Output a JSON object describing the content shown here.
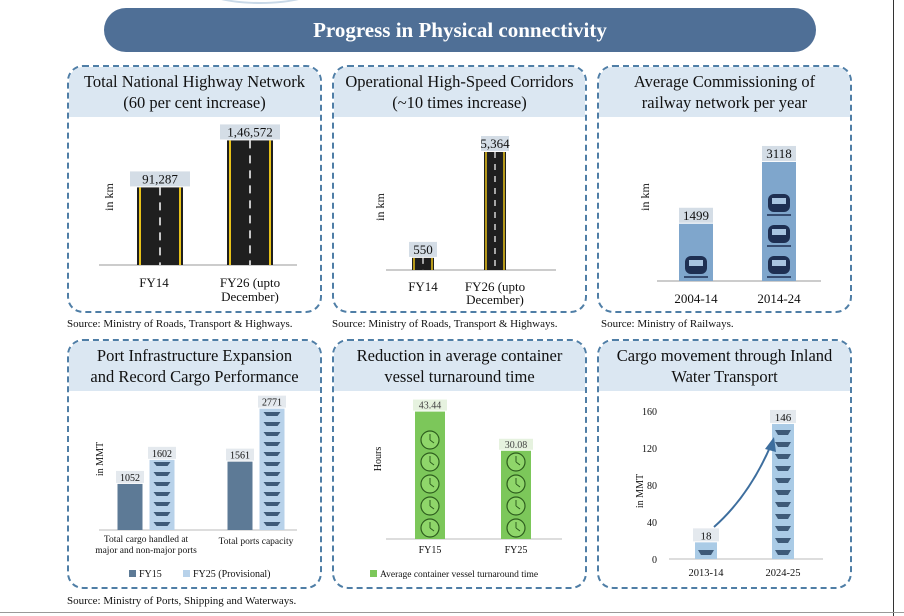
{
  "banner": {
    "title": "Progress in Physical connectivity"
  },
  "panels": [
    {
      "title": "Total National Highway Network\n(60 per cent increase)",
      "source": "Source: Ministry of Roads, Transport & Highways."
    },
    {
      "title": "Operational High-Speed Corridors\n(~10 times increase)",
      "source": "Source: Ministry of Roads, Transport & Highways."
    },
    {
      "title": "Average Commissioning of\nrailway network per year",
      "source": "Source: Ministry of Railways."
    },
    {
      "title": "Port Infrastructure Expansion\nand Record Cargo Performance",
      "source": "Source: Ministry of Ports, Shipping and Waterways."
    },
    {
      "title": "Reduction in average container\nvessel turnaround time",
      "source": ""
    },
    {
      "title": "Cargo movement through Inland\nWater Transport",
      "source": ""
    }
  ],
  "chart_data": [
    {
      "type": "bar",
      "title": "Total National Highway Network (60 per cent increase)",
      "ylabel": "in km",
      "categories": [
        "FY14",
        "FY26 (upto December)"
      ],
      "values": [
        91287,
        146572
      ],
      "value_labels": [
        "91,287",
        "1,46,572"
      ],
      "ylim": [
        0,
        160000
      ]
    },
    {
      "type": "bar",
      "title": "Operational High-Speed Corridors (~10 times increase)",
      "ylabel": "in km",
      "categories": [
        "FY14",
        "FY26 (upto December)"
      ],
      "values": [
        550,
        5364
      ],
      "value_labels": [
        "550",
        "5,364"
      ],
      "ylim": [
        0,
        5500
      ]
    },
    {
      "type": "bar",
      "title": "Average Commissioning of railway network per year",
      "ylabel": "in km",
      "categories": [
        "2004-14",
        "2014-24"
      ],
      "values": [
        1499,
        3118
      ],
      "value_labels": [
        "1499",
        "3118"
      ],
      "ylim": [
        0,
        3300
      ]
    },
    {
      "type": "bar",
      "title": "Port Infrastructure Expansion and Record Cargo Performance",
      "ylabel": "in MMT",
      "categories": [
        "Total cargo handled at major and non-major ports",
        "Total ports capacity"
      ],
      "series": [
        {
          "name": "FY15",
          "values": [
            1052,
            1561
          ],
          "value_labels": [
            "1052",
            "1561"
          ],
          "color": "#5d7a96"
        },
        {
          "name": "FY25 (Provisional)",
          "values": [
            1602,
            2771
          ],
          "value_labels": [
            "1602",
            "2771"
          ],
          "color": "#b8d2ea"
        }
      ],
      "ylim": [
        0,
        2900
      ],
      "legend": "bottom"
    },
    {
      "type": "bar",
      "title": "Reduction in average container vessel turnaround time",
      "ylabel": "Hours",
      "categories": [
        "FY15",
        "FY25"
      ],
      "values": [
        43.44,
        30.08
      ],
      "value_labels": [
        "43.44",
        "30.08"
      ],
      "series_name": "Average container vessel turnaround time",
      "color": "#7cc75a",
      "ylim": [
        0,
        45
      ],
      "legend": "bottom"
    },
    {
      "type": "bar",
      "title": "Cargo movement through Inland Water Transport",
      "ylabel": "in MMT",
      "categories": [
        "2013-14",
        "2024-25"
      ],
      "values": [
        18,
        146
      ],
      "value_labels": [
        "18",
        "146"
      ],
      "yticks": [
        0,
        40,
        80,
        120,
        160
      ],
      "ylim": [
        0,
        160
      ]
    }
  ]
}
